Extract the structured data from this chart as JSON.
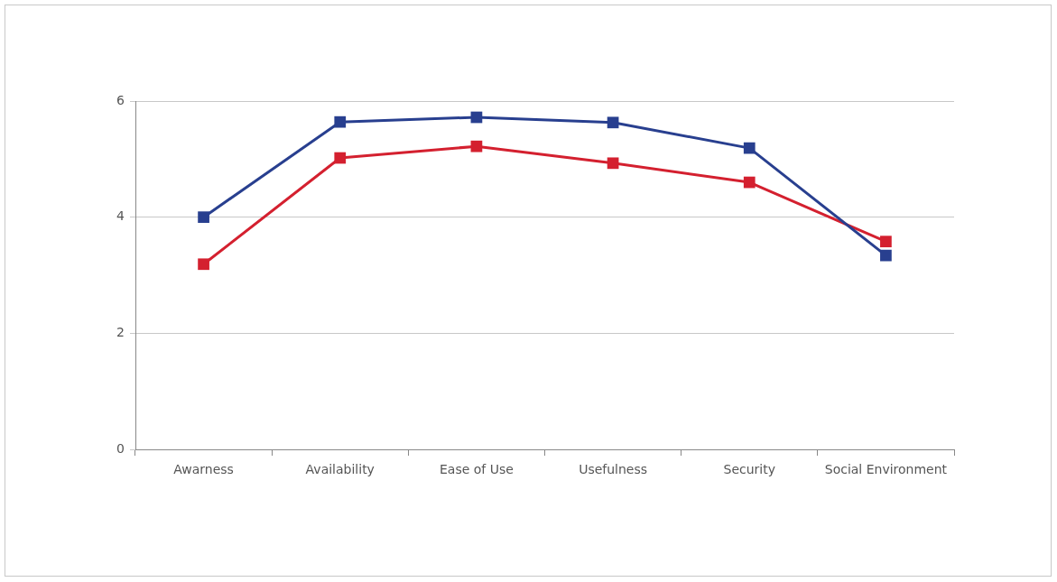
{
  "chart_data": {
    "type": "line",
    "categories": [
      "Awarness",
      "Availability",
      "Ease of Use",
      "Usefulness",
      "Security",
      "Social Environment"
    ],
    "series": [
      {
        "color": "#283f8f",
        "values": [
          4.0,
          5.64,
          5.72,
          5.63,
          5.19,
          3.34
        ]
      },
      {
        "color": "#d4202f",
        "values": [
          3.19,
          5.02,
          5.22,
          4.93,
          4.6,
          3.58
        ]
      }
    ],
    "ylim": [
      0,
      6
    ],
    "yticks": [
      0,
      2,
      4,
      6
    ],
    "grid": "y",
    "marker": "square",
    "line_style": "solid",
    "legend": false
  }
}
